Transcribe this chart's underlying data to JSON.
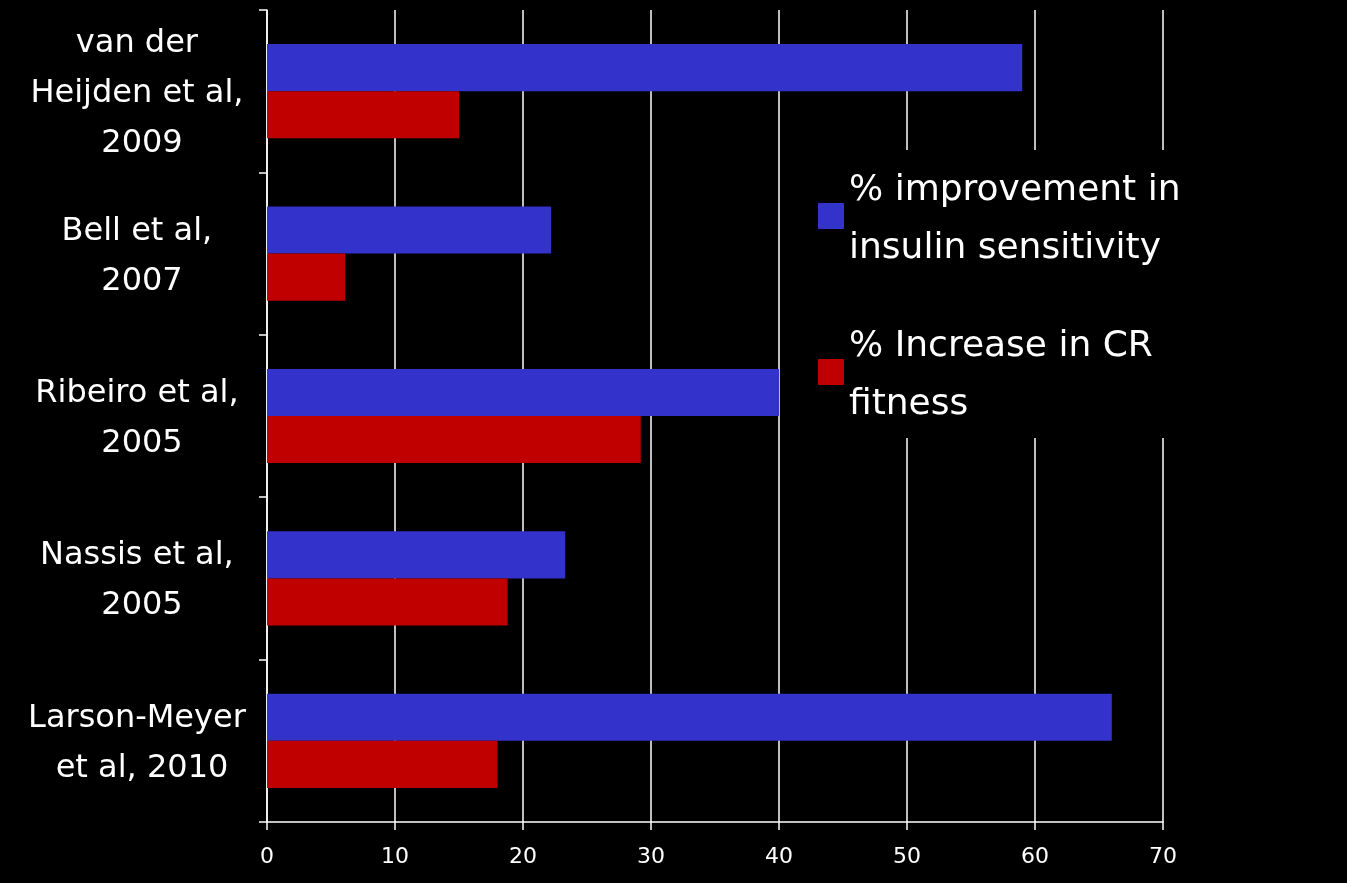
{
  "chart_data": {
    "type": "bar",
    "orientation": "horizontal",
    "categories": [
      "van der Heijden et al, 2009",
      "Bell et al, 2007",
      "Ribeiro et al, 2005",
      "Nassis et al, 2005",
      "Larson-Meyer et al, 2010"
    ],
    "series": [
      {
        "name": "% improvement in insulin sensitivity",
        "color": "#3333cc",
        "values": [
          59,
          22.2,
          40,
          23.3,
          66
        ]
      },
      {
        "name": "% Increase in CR fitness",
        "color": "#c00000",
        "values": [
          15,
          6.1,
          29.2,
          18.8,
          18
        ]
      }
    ],
    "xlim": [
      0,
      70
    ],
    "xticks": [
      0,
      10,
      20,
      30,
      40,
      50,
      60,
      70
    ],
    "grid": "x",
    "legend": "right"
  }
}
